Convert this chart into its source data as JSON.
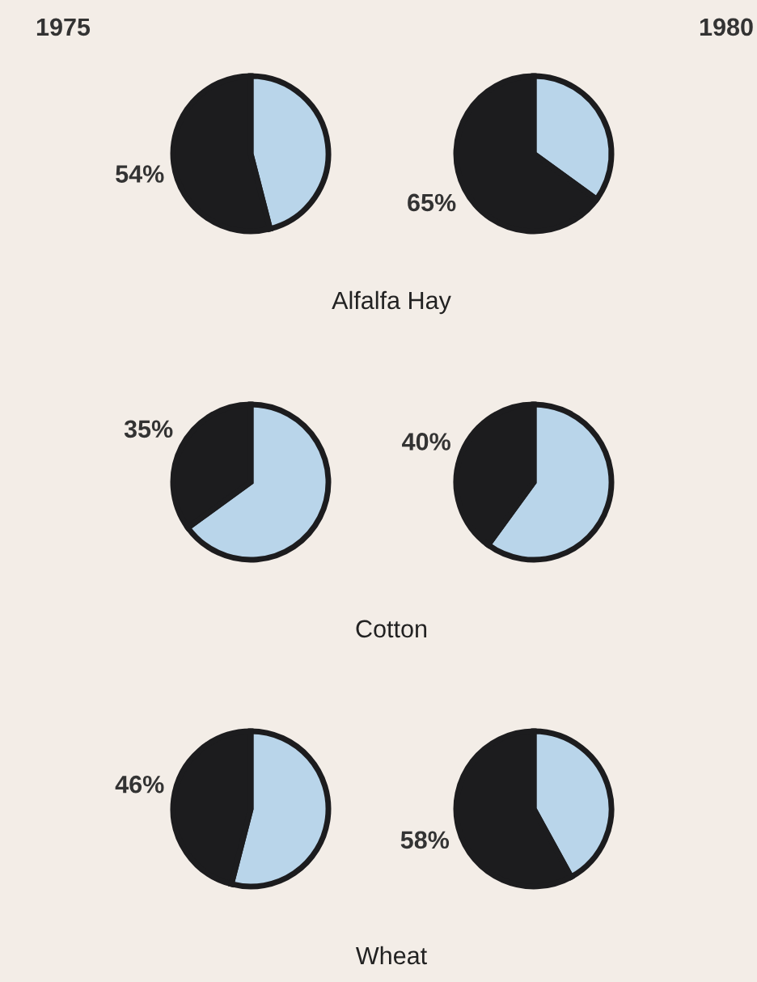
{
  "chart_data": [
    {
      "type": "pie",
      "title": "1975",
      "annotations": [
        "Alfalfa Hay"
      ],
      "categories": [
        null,
        null
      ],
      "values": [
        46,
        54
      ],
      "colors": [
        "#b9d5ea",
        "#1c1c1e"
      ],
      "value_labels": [
        null,
        "54%"
      ]
    },
    {
      "type": "pie",
      "title": "1980",
      "categories": [
        null,
        null
      ],
      "values": [
        35,
        65
      ],
      "colors": [
        "#b9d5ea",
        "#1c1c1e"
      ],
      "value_labels": [
        null,
        "65%"
      ]
    },
    {
      "type": "pie",
      "annotations": [
        "Cotton"
      ],
      "categories": [
        null,
        null
      ],
      "values": [
        65,
        35
      ],
      "colors": [
        "#b9d5ea",
        "#1c1c1e"
      ],
      "value_labels": [
        null,
        "35%"
      ]
    },
    {
      "type": "pie",
      "categories": [
        null,
        null
      ],
      "values": [
        60,
        40
      ],
      "colors": [
        "#b9d5ea",
        "#1c1c1e"
      ],
      "value_labels": [
        null,
        "40%"
      ]
    },
    {
      "type": "pie",
      "annotations": [
        "Wheat"
      ],
      "categories": [
        null,
        null
      ],
      "values": [
        54,
        46
      ],
      "colors": [
        "#b9d5ea",
        "#1c1c1e"
      ],
      "value_labels": [
        null,
        "46%"
      ]
    },
    {
      "type": "pie",
      "categories": [
        null,
        null
      ],
      "values": [
        42,
        58
      ],
      "colors": [
        "#b9d5ea",
        "#1c1c1e"
      ],
      "value_labels": [
        null,
        "58%"
      ]
    }
  ]
}
